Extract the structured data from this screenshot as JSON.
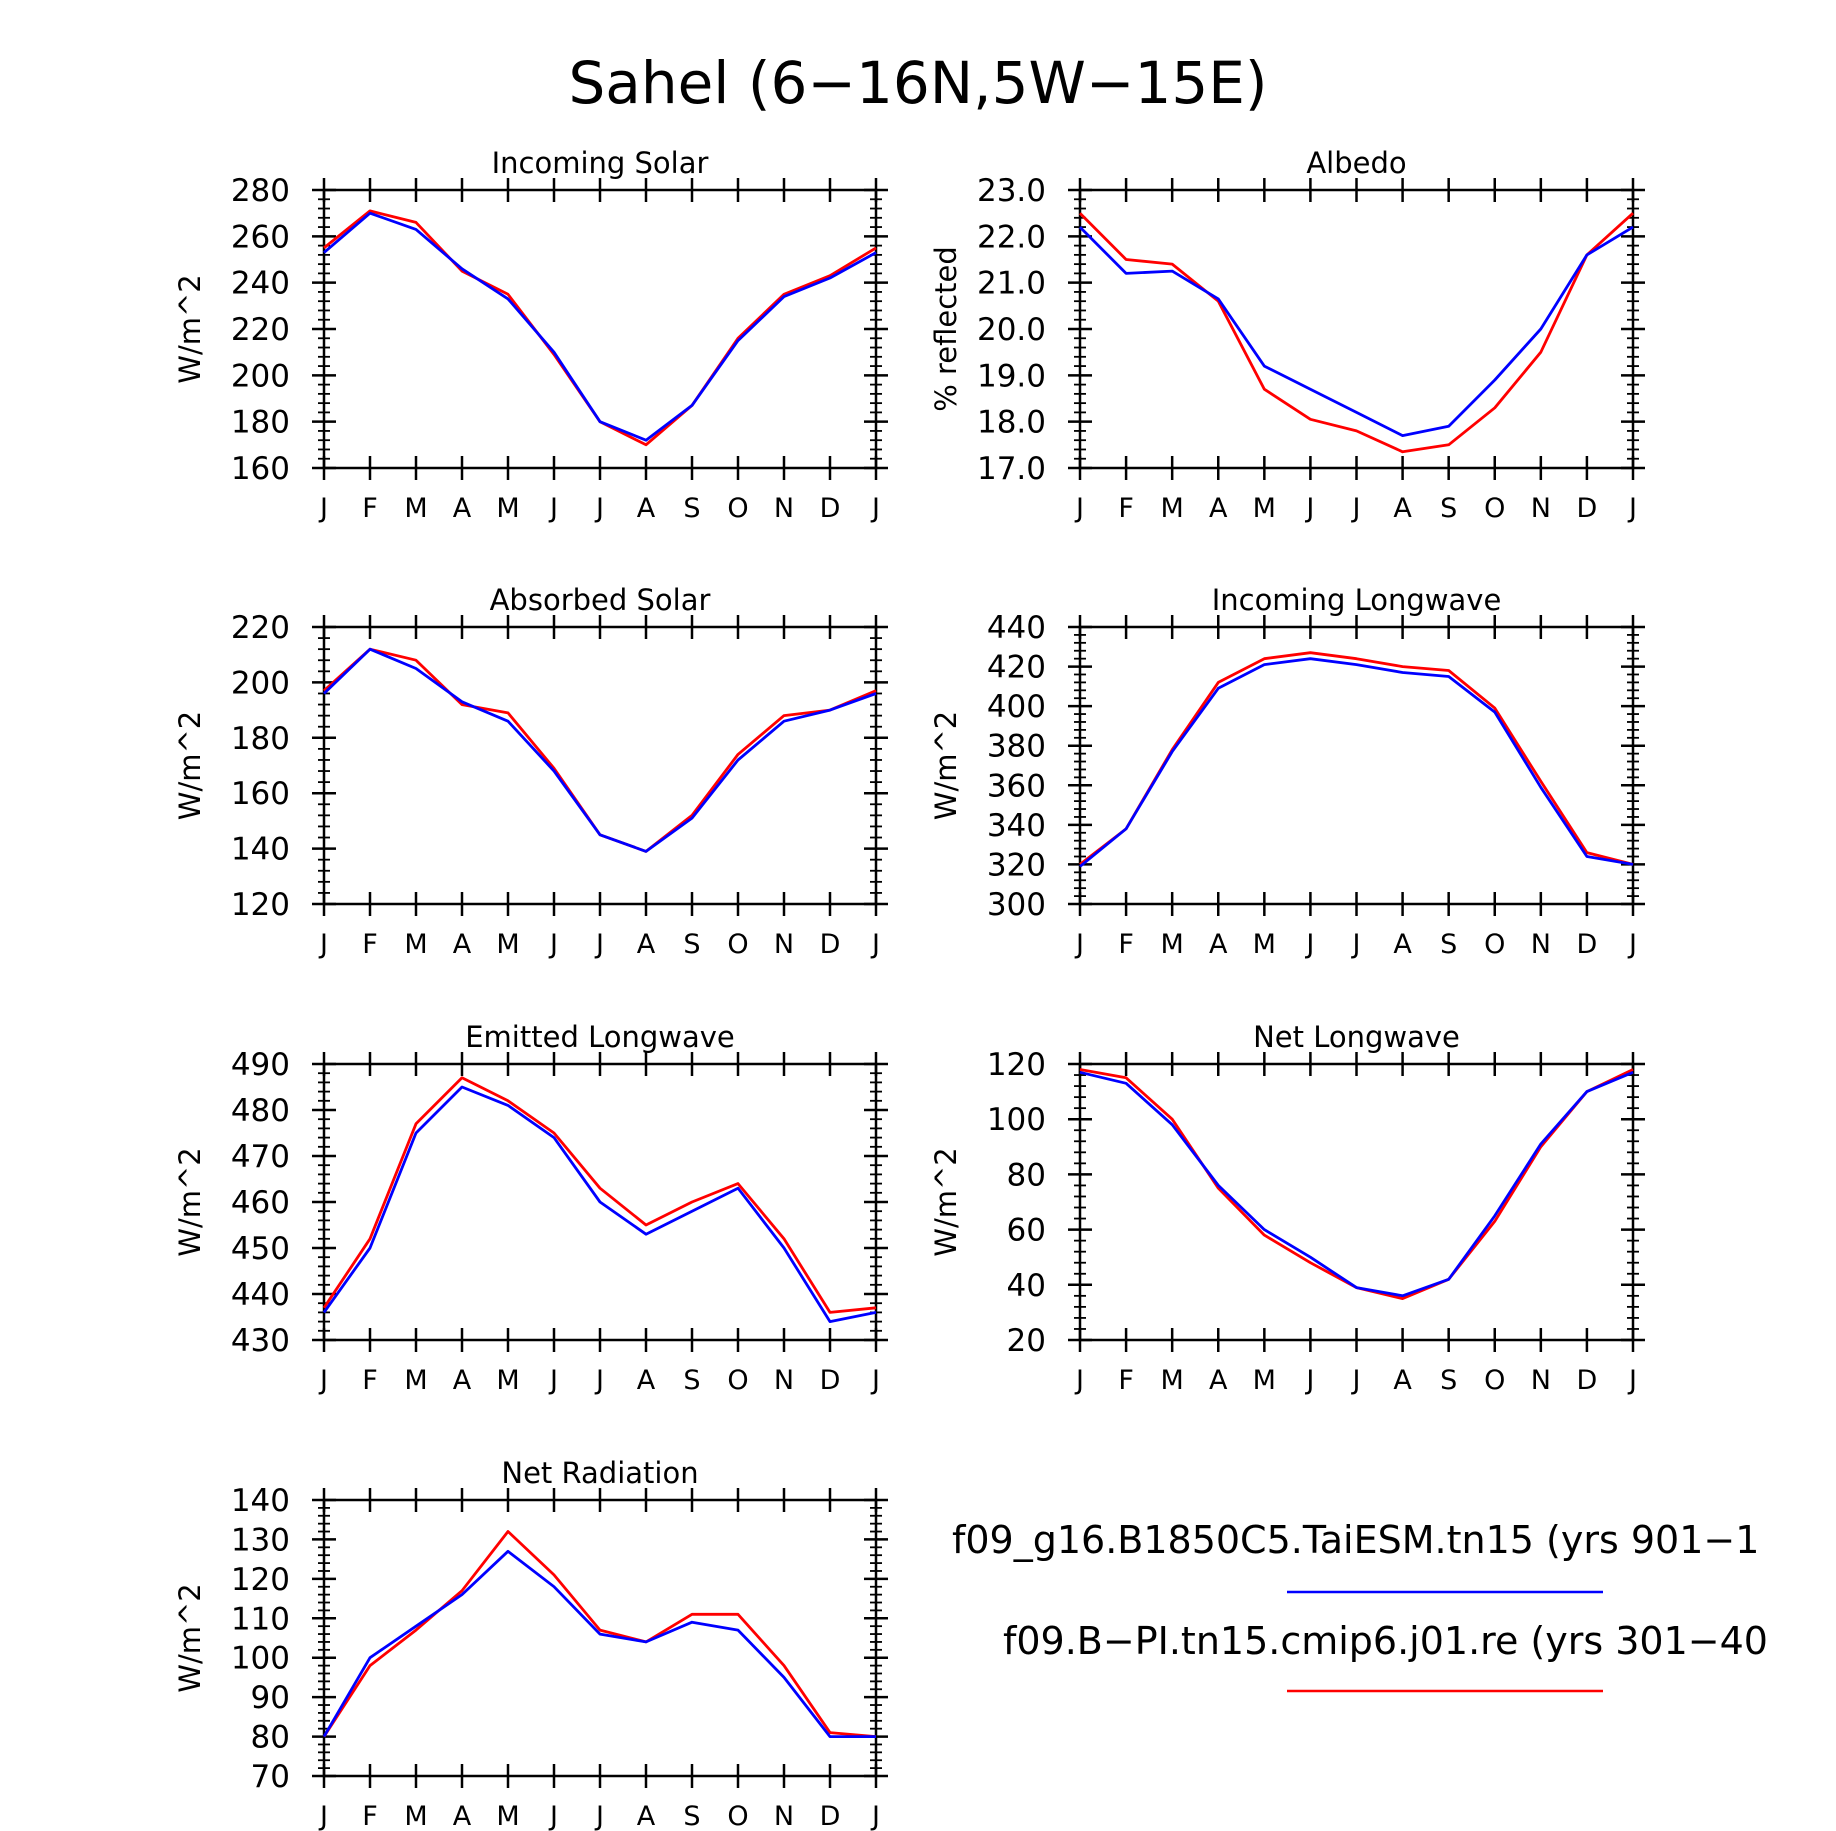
{
  "figure": {
    "title": "Sahel (6−16N,5W−15E)"
  },
  "legend": {
    "entries": [
      {
        "label": "f09_g16.B1850C5.TaiESM.tn15 (yrs 901−1",
        "color": "#0000ff"
      },
      {
        "label": "f09.B−PI.tn15.cmip6.j01.re (yrs 301−40",
        "color": "#ff0000"
      }
    ]
  },
  "colors": {
    "series_a": "#0000ff",
    "series_b": "#ff0000",
    "axis": "#000000"
  },
  "chart_data": [
    {
      "type": "line",
      "title": "Incoming Solar",
      "ylabel": "W/m^2",
      "categories": [
        "J",
        "F",
        "M",
        "A",
        "M",
        "J",
        "J",
        "A",
        "S",
        "O",
        "N",
        "D",
        "J"
      ],
      "ylim": [
        160,
        280
      ],
      "yticks": [
        "160",
        "180",
        "200",
        "220",
        "240",
        "260",
        "280"
      ],
      "series": [
        {
          "color": "#ff0000",
          "values": [
            255,
            271,
            266,
            245,
            235,
            209,
            180,
            170,
            187,
            216,
            235,
            243,
            255
          ]
        },
        {
          "color": "#0000ff",
          "values": [
            253,
            270,
            263,
            246,
            233,
            210,
            180,
            172,
            187,
            215,
            234,
            242,
            253
          ]
        }
      ]
    },
    {
      "type": "line",
      "title": "Albedo",
      "ylabel": "% reflected",
      "categories": [
        "J",
        "F",
        "M",
        "A",
        "M",
        "J",
        "J",
        "A",
        "S",
        "O",
        "N",
        "D",
        "J"
      ],
      "ylim": [
        17.0,
        23.0
      ],
      "yticks": [
        "17.0",
        "18.0",
        "19.0",
        "20.0",
        "21.0",
        "22.0",
        "23.0"
      ],
      "series": [
        {
          "color": "#ff0000",
          "values": [
            22.5,
            21.5,
            21.4,
            20.6,
            18.7,
            18.05,
            17.8,
            17.35,
            17.5,
            18.3,
            19.5,
            21.6,
            22.5
          ]
        },
        {
          "color": "#0000ff",
          "values": [
            22.2,
            21.2,
            21.25,
            20.65,
            19.2,
            18.7,
            18.2,
            17.7,
            17.9,
            18.9,
            20.0,
            21.6,
            22.2
          ]
        }
      ]
    },
    {
      "type": "line",
      "title": "Absorbed Solar",
      "ylabel": "W/m^2",
      "categories": [
        "J",
        "F",
        "M",
        "A",
        "M",
        "J",
        "J",
        "A",
        "S",
        "O",
        "N",
        "D",
        "J"
      ],
      "ylim": [
        120,
        220
      ],
      "yticks": [
        "120",
        "140",
        "160",
        "180",
        "200",
        "220"
      ],
      "series": [
        {
          "color": "#ff0000",
          "values": [
            197,
            212,
            208,
            192,
            189,
            169,
            145,
            139,
            152,
            174,
            188,
            190,
            197
          ]
        },
        {
          "color": "#0000ff",
          "values": [
            196,
            212,
            205,
            193,
            186,
            168,
            145,
            139,
            151,
            172,
            186,
            190,
            196
          ]
        }
      ]
    },
    {
      "type": "line",
      "title": "Incoming Longwave",
      "ylabel": "W/m^2",
      "categories": [
        "J",
        "F",
        "M",
        "A",
        "M",
        "J",
        "J",
        "A",
        "S",
        "O",
        "N",
        "D",
        "J"
      ],
      "ylim": [
        300,
        440
      ],
      "yticks": [
        "300",
        "320",
        "340",
        "360",
        "380",
        "400",
        "420",
        "440"
      ],
      "series": [
        {
          "color": "#ff0000",
          "values": [
            320,
            338,
            378,
            412,
            424,
            427,
            424,
            420,
            418,
            399,
            362,
            326,
            320
          ]
        },
        {
          "color": "#0000ff",
          "values": [
            319,
            338,
            377,
            409,
            421,
            424,
            421,
            417,
            415,
            397,
            359,
            324,
            320
          ]
        }
      ]
    },
    {
      "type": "line",
      "title": "Emitted Longwave",
      "ylabel": "W/m^2",
      "categories": [
        "J",
        "F",
        "M",
        "A",
        "M",
        "J",
        "J",
        "A",
        "S",
        "O",
        "N",
        "D",
        "J"
      ],
      "ylim": [
        430,
        490
      ],
      "yticks": [
        "430",
        "440",
        "450",
        "460",
        "470",
        "480",
        "490"
      ],
      "series": [
        {
          "color": "#ff0000",
          "values": [
            437,
            452,
            477,
            487,
            482,
            475,
            463,
            455,
            460,
            464,
            452,
            436,
            437
          ]
        },
        {
          "color": "#0000ff",
          "values": [
            436,
            450,
            475,
            485,
            481,
            474,
            460,
            453,
            458,
            463,
            450,
            434,
            436
          ]
        }
      ]
    },
    {
      "type": "line",
      "title": "Net Longwave",
      "ylabel": "W/m^2",
      "categories": [
        "J",
        "F",
        "M",
        "A",
        "M",
        "J",
        "J",
        "A",
        "S",
        "O",
        "N",
        "D",
        "J"
      ],
      "ylim": [
        20,
        120
      ],
      "yticks": [
        "20",
        "40",
        "60",
        "80",
        "100",
        "120"
      ],
      "series": [
        {
          "color": "#ff0000",
          "values": [
            118,
            115,
            100,
            75,
            58,
            48,
            39,
            35,
            42,
            63,
            90,
            110,
            118
          ]
        },
        {
          "color": "#0000ff",
          "values": [
            117,
            113,
            98,
            76,
            60,
            50,
            39,
            36,
            42,
            65,
            91,
            110,
            117
          ]
        }
      ]
    },
    {
      "type": "line",
      "title": "Net Radiation",
      "ylabel": "W/m^2",
      "categories": [
        "J",
        "F",
        "M",
        "A",
        "M",
        "J",
        "J",
        "A",
        "S",
        "O",
        "N",
        "D",
        "J"
      ],
      "ylim": [
        70,
        140
      ],
      "yticks": [
        "70",
        "80",
        "90",
        "100",
        "110",
        "120",
        "130",
        "140"
      ],
      "series": [
        {
          "color": "#ff0000",
          "values": [
            80,
            98,
            107,
            117,
            132,
            121,
            107,
            104,
            111,
            111,
            98,
            81,
            80
          ]
        },
        {
          "color": "#0000ff",
          "values": [
            80,
            100,
            108,
            116,
            127,
            118,
            106,
            104,
            109,
            107,
            95,
            80,
            80
          ]
        }
      ]
    }
  ]
}
